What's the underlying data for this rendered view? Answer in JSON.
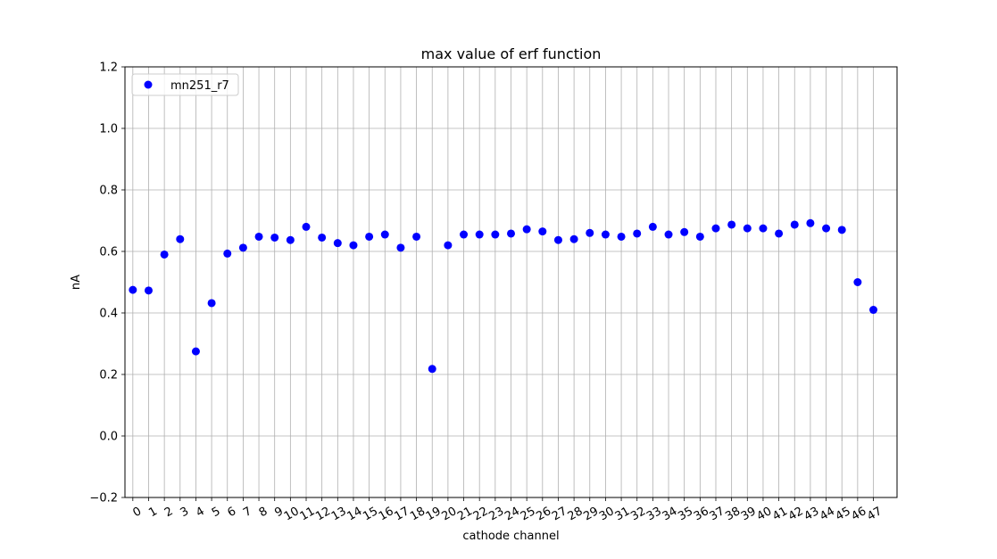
{
  "chart_data": {
    "type": "scatter",
    "title": "max value of erf function",
    "xlabel": "cathode channel",
    "ylabel": "nA",
    "ylim": [
      -0.2,
      1.2
    ],
    "xlim": [
      -0.5,
      48.5
    ],
    "yticks": [
      -0.2,
      0.0,
      0.2,
      0.4,
      0.6,
      0.8,
      1.0,
      1.2
    ],
    "ytick_labels": [
      "−0.2",
      "0.0",
      "0.2",
      "0.4",
      "0.6",
      "0.8",
      "1.0",
      "1.2"
    ],
    "grid": true,
    "legend_position": "top-left",
    "marker_color": "#0000ff",
    "series": [
      {
        "name": "mn251_r7",
        "x": [
          0,
          1,
          2,
          3,
          4,
          5,
          6,
          7,
          8,
          9,
          10,
          11,
          12,
          13,
          14,
          15,
          16,
          17,
          18,
          19,
          20,
          21,
          22,
          23,
          24,
          25,
          26,
          27,
          28,
          29,
          30,
          31,
          32,
          33,
          34,
          35,
          36,
          37,
          38,
          39,
          40,
          41,
          42,
          43,
          44,
          45,
          46,
          47
        ],
        "x_labels": [
          "0",
          "1",
          "2",
          "3",
          "4",
          "5",
          "6",
          "7",
          "8",
          "9",
          "10",
          "11",
          "12",
          "13",
          "14",
          "15",
          "16",
          "17",
          "18",
          "19",
          "20",
          "21",
          "22",
          "23",
          "24",
          "25",
          "26",
          "27",
          "28",
          "29",
          "30",
          "31",
          "32",
          "33",
          "34",
          "35",
          "36",
          "37",
          "38",
          "39",
          "40",
          "41",
          "42",
          "43",
          "44",
          "45",
          "46",
          "47"
        ],
        "y": [
          0.475,
          0.473,
          0.59,
          0.64,
          0.275,
          0.432,
          0.593,
          0.612,
          0.648,
          0.645,
          0.637,
          0.68,
          0.645,
          0.627,
          0.62,
          0.648,
          0.655,
          0.612,
          0.648,
          0.218,
          0.62,
          0.655,
          0.655,
          0.655,
          0.658,
          0.672,
          0.665,
          0.637,
          0.64,
          0.66,
          0.655,
          0.648,
          0.658,
          0.68,
          0.655,
          0.663,
          0.648,
          0.675,
          0.687,
          0.675,
          0.675,
          0.658,
          0.687,
          0.692,
          0.675,
          0.67,
          0.5,
          0.41
        ]
      }
    ]
  }
}
